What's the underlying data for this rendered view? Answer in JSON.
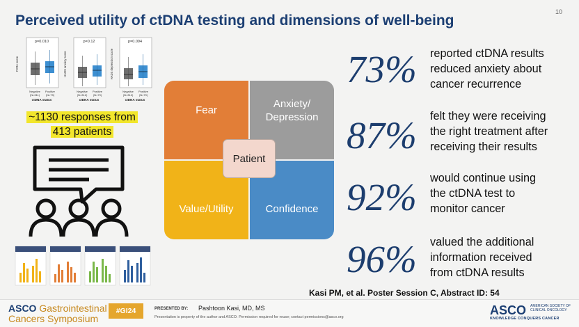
{
  "slide": {
    "title": "Perceived utility of ctDNA testing and dimensions of well-being",
    "number": "10"
  },
  "plots": {
    "items": [
      {
        "pvalue": "p=0.010",
        "ylabel": "FCR4 score",
        "ticks": [
          "25",
          "20",
          "15",
          "10",
          "5",
          "0"
        ],
        "neg": "Negative\n(N=311)",
        "pos": "Positive\n(N=79)",
        "xlabel": "ctDNA status"
      },
      {
        "pvalue": "p=0.12",
        "ylabel": "HADS anxiety score",
        "ticks": [
          "20",
          "15",
          "10",
          "5",
          "0"
        ],
        "neg": "Negative\n(N=312)",
        "pos": "Positive\n(N=79)",
        "xlabel": "ctDNA status"
      },
      {
        "pvalue": "p=0.094",
        "ylabel": "HADS depression score",
        "ticks": [
          "20",
          "15",
          "10",
          "5",
          "0"
        ],
        "neg": "Negative\n(N=312)",
        "pos": "Positive\n(N=79)",
        "xlabel": "ctDNA status"
      }
    ],
    "colors": {
      "negative": "#6e6e6e",
      "positive": "#3d8fd1"
    }
  },
  "highlight": {
    "line1": "~1130 responses from",
    "line2": "413 patients"
  },
  "quadrant": {
    "fear": "Fear",
    "anxiety_line1": "Anxiety/",
    "anxiety_line2": "Depression",
    "value": "Value/Utility",
    "confidence": "Confidence",
    "center": "Patient",
    "colors": {
      "fear": "#e27e37",
      "anxiety": "#9c9c9c",
      "value": "#f1b318",
      "confidence": "#4a8bc6",
      "center": "#f3d7cd"
    }
  },
  "stats": [
    {
      "pct": "73%",
      "l1": "reported ctDNA results",
      "l2": "reduced anxiety about",
      "l3": "cancer recurrence"
    },
    {
      "pct": "87%",
      "l1": "felt they were receiving",
      "l2": "the right treatment after",
      "l3": "receiving their results"
    },
    {
      "pct": "92%",
      "l1": "would continue using",
      "l2": "the ctDNA test to",
      "l3": "monitor cancer"
    },
    {
      "pct": "96%",
      "l1": "valued the additional",
      "l2": "information received",
      "l3": "from ctDNA results"
    }
  ],
  "citation": "Kasi PM, et al. Poster Session C, Abstract ID: 54",
  "footer": {
    "asco": "ASCO",
    "gi": "Gastrointestinal",
    "symposium": "Cancers Symposium",
    "tag": "#GI24",
    "presented_by": "PRESENTED BY:",
    "presenter": "Pashtoon Kasi, MD, MS",
    "disclaimer": "Presentation is property of the author and ASCO. Permission required for reuse; contact permissions@asco.org",
    "asco_right": "ASCO",
    "asco_right_sub1": "AMERICAN SOCIETY OF",
    "asco_right_sub2": "CLINICAL ONCOLOGY",
    "asco_right_tag": "KNOWLEDGE CONQUERS CANCER"
  }
}
